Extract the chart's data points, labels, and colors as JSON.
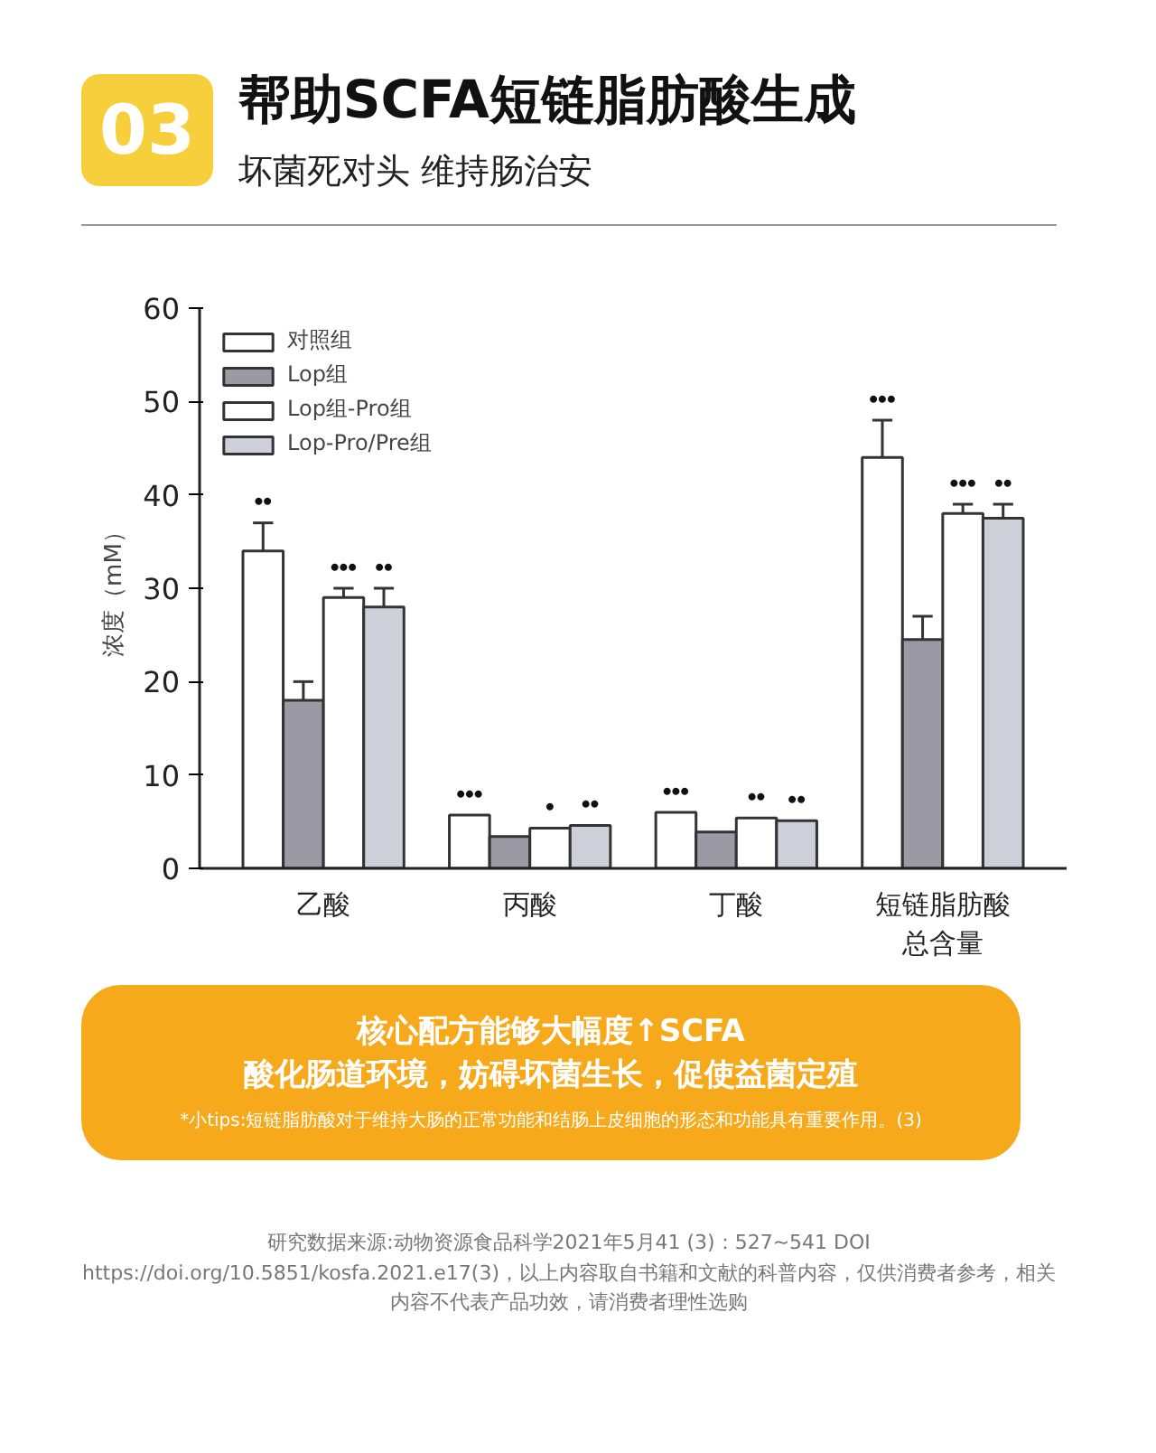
{
  "chart_data": {
    "type": "bar",
    "title": "帮助SCFA短链脂肪酸生成",
    "subtitle": "坏菌死对头 维持肠治安",
    "ylabel": "浓度（mM）",
    "categories": [
      "乙酸",
      "丙酸",
      "丁酸",
      "短链脂肪酸总含量"
    ],
    "series": [
      {
        "name": "对照组",
        "color": "#ffffff",
        "values": [
          34,
          5.7,
          6.0,
          44
        ],
        "errors": [
          [
            34,
            37
          ],
          null,
          null,
          [
            44,
            48
          ]
        ],
        "value_labels": [
          "••",
          "•••",
          "•••",
          "•••"
        ]
      },
      {
        "name": "Lop组",
        "color": "#9a99a4",
        "values": [
          18,
          3.4,
          3.9,
          24.5
        ],
        "errors": [
          [
            18,
            20
          ],
          null,
          null,
          [
            24.5,
            27
          ]
        ],
        "value_labels": [
          null,
          null,
          null,
          null
        ]
      },
      {
        "name": "Lop组-Pro组",
        "color": "#ffffff",
        "values": [
          29,
          4.3,
          5.4,
          38
        ],
        "errors": [
          [
            29,
            30
          ],
          null,
          null,
          [
            38,
            39
          ]
        ],
        "value_labels": [
          "•••",
          "•",
          "••",
          "•••"
        ]
      },
      {
        "name": "Lop-Pro/Pre组",
        "color": "#cfcfd9",
        "values": [
          28,
          4.6,
          5.1,
          37.5
        ],
        "errors": [
          [
            28,
            30
          ],
          null,
          null,
          [
            37.5,
            39
          ]
        ],
        "value_labels": [
          "••",
          "••",
          "••",
          "••"
        ]
      }
    ],
    "ylim": [
      0,
      60
    ],
    "yticks": [
      0,
      10,
      20,
      30,
      40,
      50,
      60
    ],
    "grid": false,
    "legend": "top left",
    "annotations": [
      "03",
      "核心配方能够大幅度↑SCFA",
      "酸化肠道环境，妨碍坏菌生长，促使益菌定殖",
      "*小tips:短链脂肪酸对于维持大肠的正常功能和结肠上皮细胞的形态和功能具有重要作用。(3)",
      "研究数据来源:动物资源食品科学2021年5月41 (3)：527~541 DOI https://doi.org/10.5851/kosfa.2021.e17(3)，以上内容取自书籍和文献的科普内容，仅供消费者参考，相关内容不代表产品功效，请消费者理性选购"
    ]
  }
}
